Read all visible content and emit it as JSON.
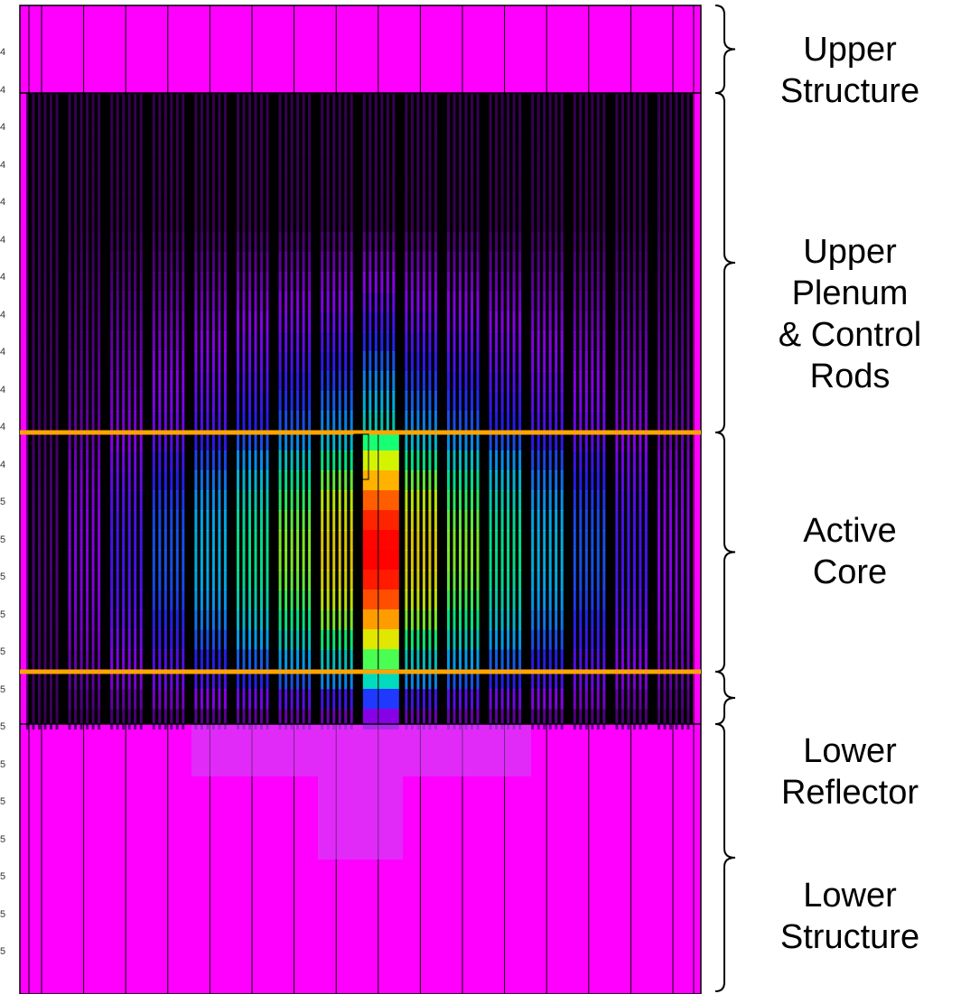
{
  "figure": {
    "regions": [
      {
        "id": "upper-structure",
        "label": "Upper\nStructure"
      },
      {
        "id": "upper-plenum",
        "label": "Upper\nPlenum\n& Control\nRods"
      },
      {
        "id": "active-core",
        "label": "Active\nCore"
      },
      {
        "id": "lower-reflector",
        "label": "Lower\nReflector"
      },
      {
        "id": "lower-structure",
        "label": "Lower\nStructure"
      }
    ],
    "tick_labels": [
      "4",
      "4",
      "4",
      "4",
      "4",
      "4",
      "4",
      "4",
      "4",
      "4",
      "4",
      "4",
      "5",
      "5",
      "5",
      "5",
      "5",
      "5",
      "5",
      "5",
      "5",
      "5",
      "5",
      "5",
      "5"
    ],
    "colors": {
      "structure": "#ff00ff",
      "core_boundary": "#ffa500",
      "rod_dark": "#000000"
    }
  }
}
